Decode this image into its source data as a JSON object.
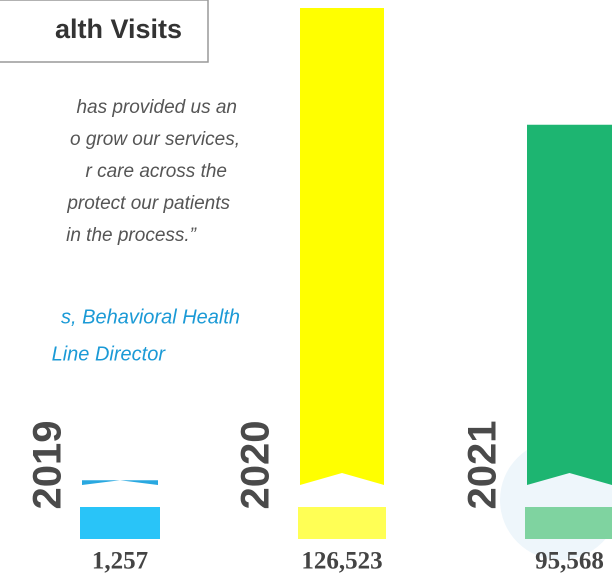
{
  "chart_data": {
    "type": "bar",
    "title": "alth Visits",
    "quote": [
      "has provided us an",
      "o grow our services,",
      "r care across the",
      "protect our patients",
      "in the process.”"
    ],
    "attribution": [
      "s, Behavioral Health",
      "Line Director"
    ],
    "categories": [
      "2019",
      "2020",
      "2021"
    ],
    "values": [
      1257,
      126523,
      95568
    ],
    "value_labels": [
      "1,257",
      "126,523",
      "95,568"
    ],
    "colors": [
      "#29a8e0",
      "#ffff00",
      "#1db571"
    ],
    "base_colors": [
      "#29c4f8",
      "#ffff55",
      "#7fd3a0"
    ]
  }
}
